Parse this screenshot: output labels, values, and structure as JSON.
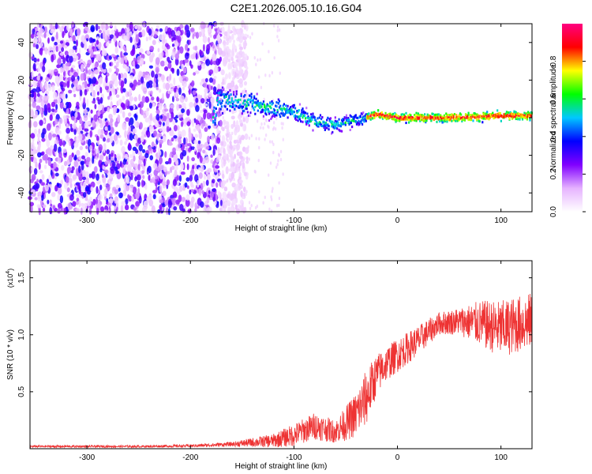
{
  "figure_title": "C2E1.2026.005.10.16.G04",
  "chart_data": [
    {
      "type": "heatmap",
      "title": "C2E1.2026.005.10.16.G04",
      "xlabel": "Height of straight line (km)",
      "ylabel": "Frequency (Hz)",
      "xlim": [
        -355,
        130
      ],
      "ylim": [
        -50,
        50
      ],
      "xticks": [
        -300,
        -200,
        -100,
        0,
        100
      ],
      "xtick_labels": [
        "-300",
        "-200",
        "-100",
        "0",
        "100"
      ],
      "yticks": [
        -40,
        -20,
        0,
        20,
        40
      ],
      "ytick_labels": [
        "-40",
        "-20",
        "0",
        "20",
        "40"
      ],
      "colorbar": {
        "label": "Normalized spectral amplitude",
        "range": [
          0,
          1
        ],
        "ticks": [
          0.0,
          0.2,
          0.4,
          0.6,
          0.8
        ],
        "tick_labels": [
          "0.0",
          "0.2",
          "0.4",
          "0.6",
          "0.8"
        ],
        "colormap": [
          "#ffffff",
          "#e6b3ff",
          "#8000ff",
          "#0000ff",
          "#00c8ff",
          "#00ff00",
          "#ffff00",
          "#ff0000",
          "#ff0080"
        ]
      },
      "features": {
        "broadband_noise_x_range": [
          -355,
          -170
        ],
        "narrowband_track": [
          {
            "x": -175,
            "y": 10
          },
          {
            "x": -150,
            "y": 8
          },
          {
            "x": -120,
            "y": 5
          },
          {
            "x": -100,
            "y": 3
          },
          {
            "x": -80,
            "y": -2
          },
          {
            "x": -60,
            "y": -4
          },
          {
            "x": -45,
            "y": -2
          },
          {
            "x": -30,
            "y": 0
          },
          {
            "x": -20,
            "y": 2
          },
          {
            "x": 0,
            "y": 0
          },
          {
            "x": 50,
            "y": 0
          },
          {
            "x": 100,
            "y": 1
          },
          {
            "x": 130,
            "y": 1
          }
        ]
      }
    },
    {
      "type": "line",
      "xlabel": "Height of straight line (km)",
      "ylabel": "SNR (10 * v/v)",
      "y_multiplier_label": "(x10",
      "y_multiplier_exponent": "4",
      "y_multiplier_suffix": ")",
      "xlim": [
        -355,
        130
      ],
      "ylim": [
        0,
        1.65
      ],
      "xticks": [
        -300,
        -200,
        -100,
        0,
        100
      ],
      "xtick_labels": [
        "-300",
        "-200",
        "-100",
        "0",
        "100"
      ],
      "yticks": [
        0.5,
        1.0,
        1.5
      ],
      "ytick_labels": [
        "0.5",
        "1.0",
        "1.5"
      ],
      "series": [
        {
          "name": "SNR",
          "color": "#ee3333",
          "envelope": [
            {
              "x": -355,
              "mean": 0.02,
              "spread": 0.01
            },
            {
              "x": -250,
              "mean": 0.02,
              "spread": 0.01
            },
            {
              "x": -200,
              "mean": 0.025,
              "spread": 0.012
            },
            {
              "x": -160,
              "mean": 0.04,
              "spread": 0.02
            },
            {
              "x": -120,
              "mean": 0.07,
              "spread": 0.06
            },
            {
              "x": -100,
              "mean": 0.12,
              "spread": 0.1
            },
            {
              "x": -80,
              "mean": 0.2,
              "spread": 0.12
            },
            {
              "x": -60,
              "mean": 0.15,
              "spread": 0.1
            },
            {
              "x": -50,
              "mean": 0.22,
              "spread": 0.15
            },
            {
              "x": -40,
              "mean": 0.3,
              "spread": 0.2
            },
            {
              "x": -30,
              "mean": 0.45,
              "spread": 0.25
            },
            {
              "x": -20,
              "mean": 0.65,
              "spread": 0.18
            },
            {
              "x": -10,
              "mean": 0.75,
              "spread": 0.15
            },
            {
              "x": 0,
              "mean": 0.82,
              "spread": 0.15
            },
            {
              "x": 20,
              "mean": 0.95,
              "spread": 0.13
            },
            {
              "x": 40,
              "mean": 1.1,
              "spread": 0.1
            },
            {
              "x": 60,
              "mean": 1.12,
              "spread": 0.12
            },
            {
              "x": 80,
              "mean": 1.1,
              "spread": 0.2
            },
            {
              "x": 100,
              "mean": 1.05,
              "spread": 0.25
            },
            {
              "x": 120,
              "mean": 1.1,
              "spread": 0.25
            },
            {
              "x": 130,
              "mean": 1.12,
              "spread": 0.25
            }
          ]
        }
      ]
    }
  ]
}
